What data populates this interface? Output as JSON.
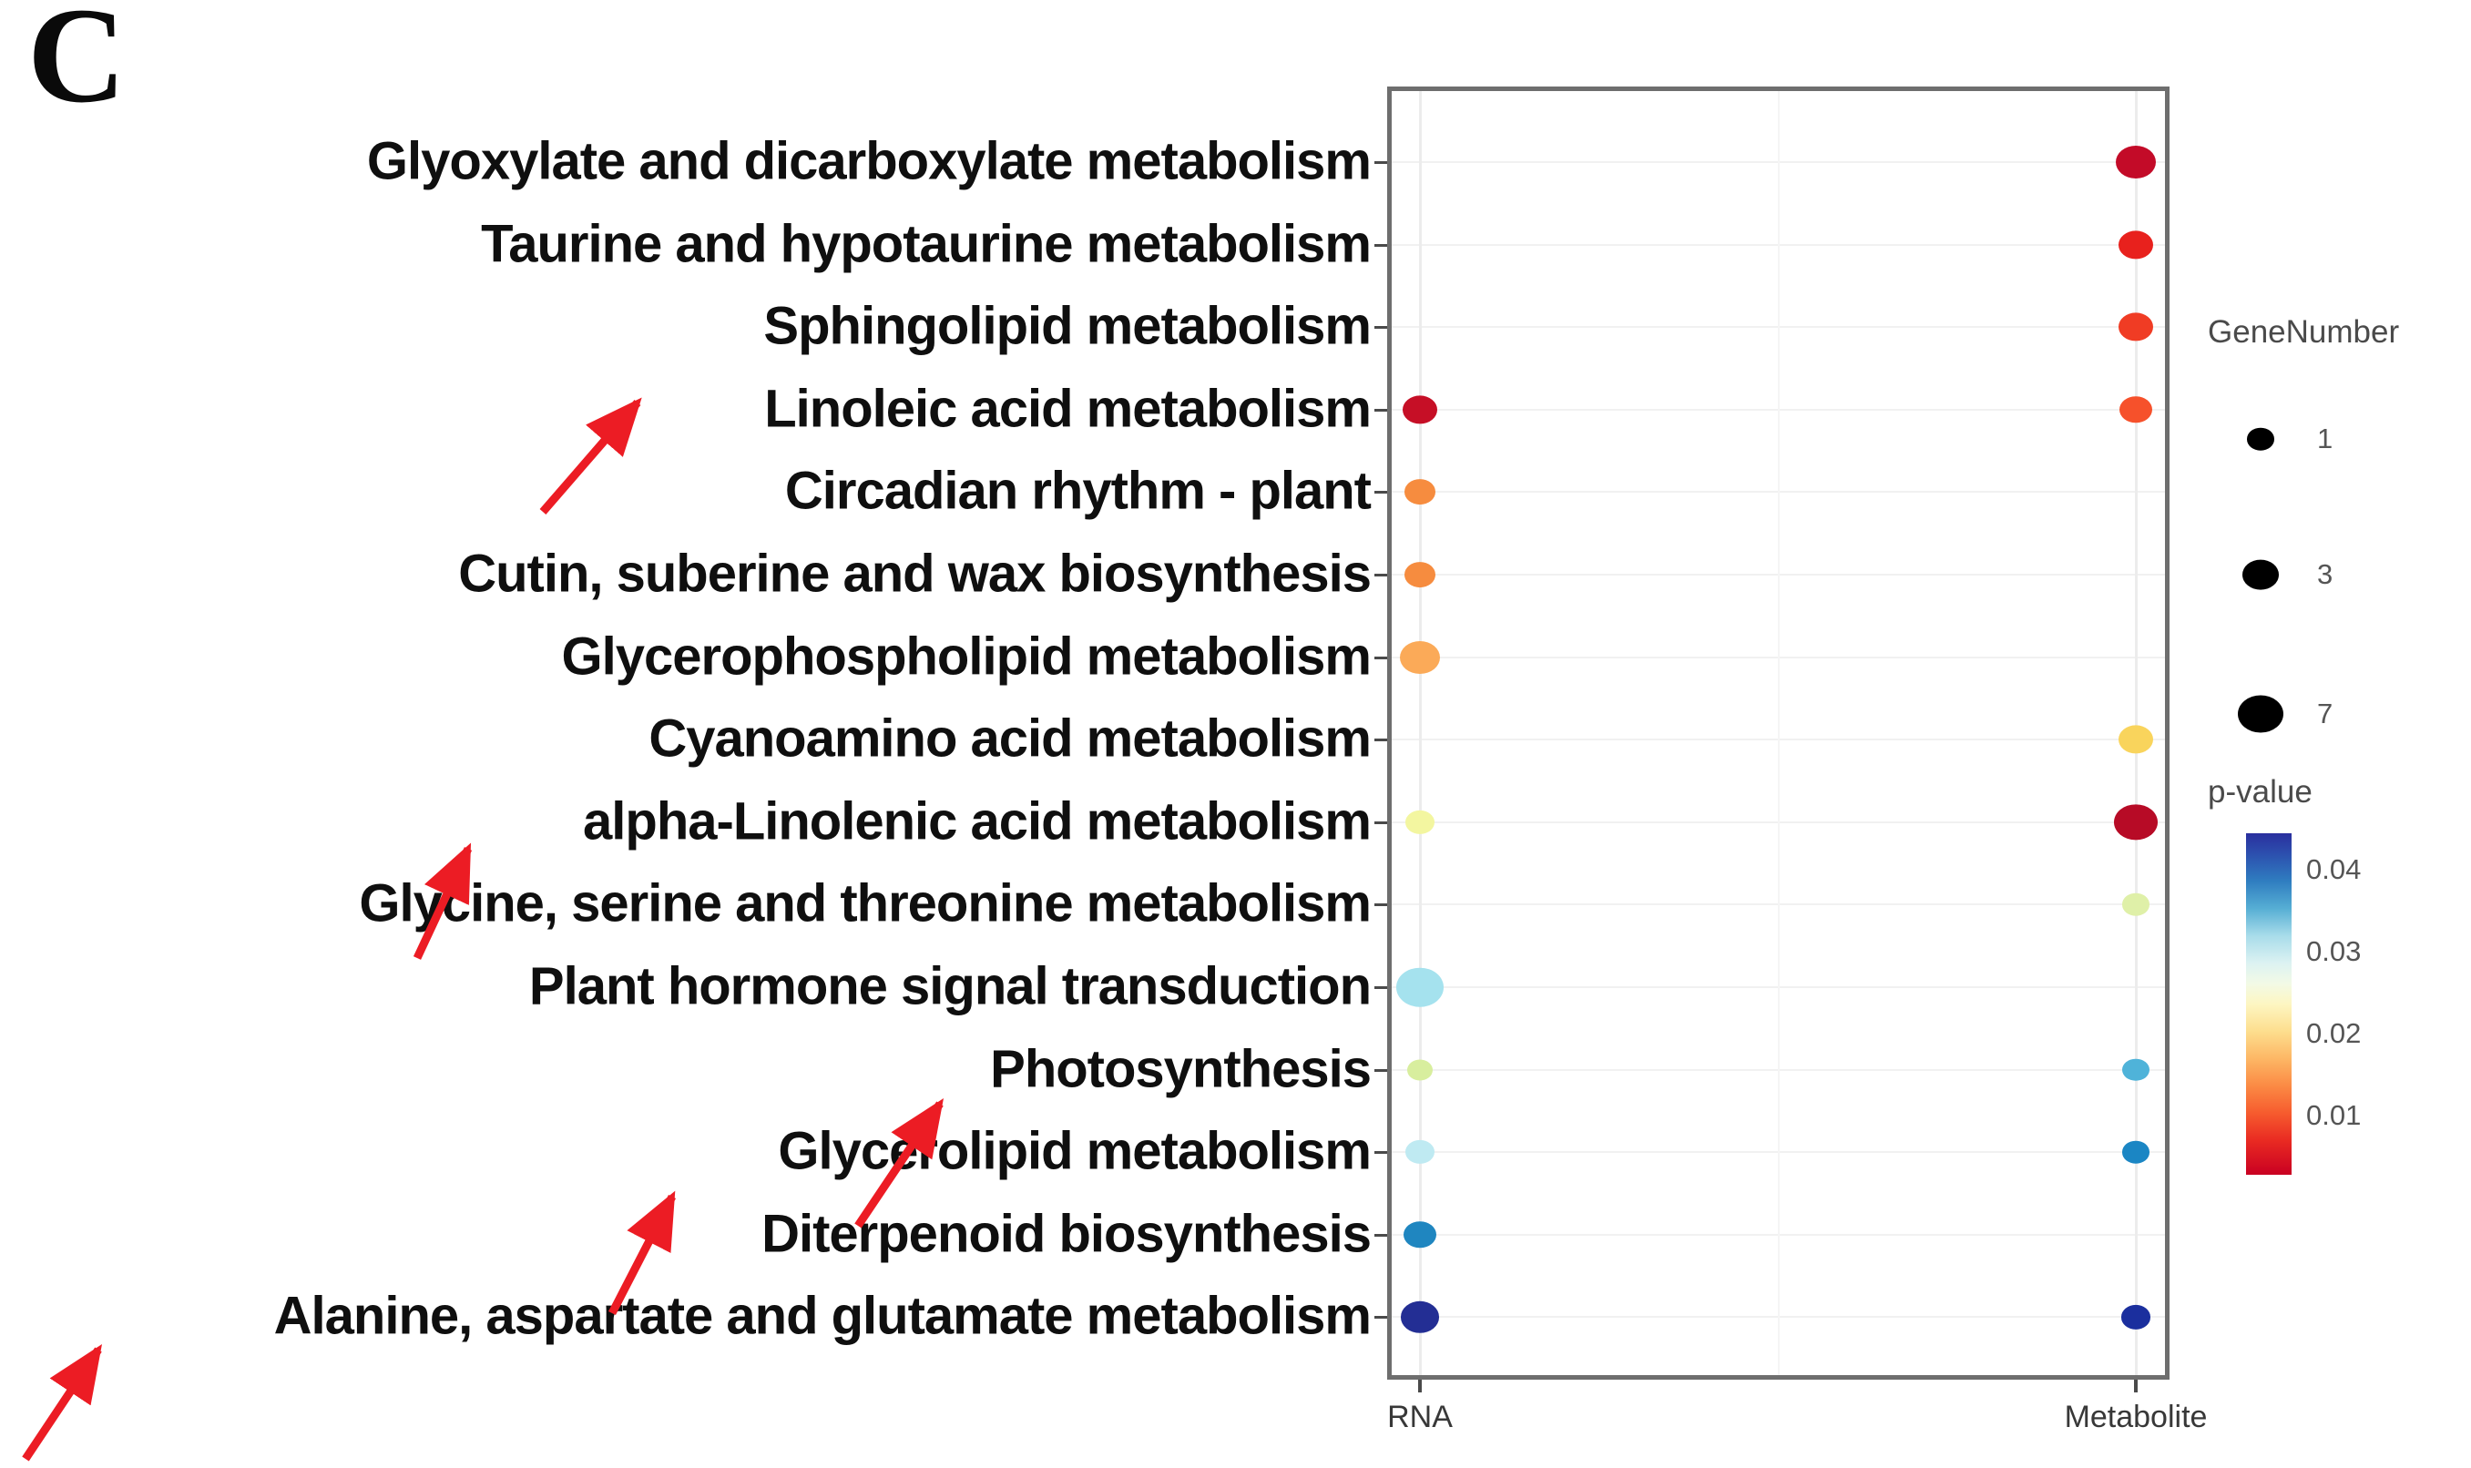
{
  "panel_label": "C",
  "legend_gene": {
    "title": "GeneNumber",
    "sizes": [
      {
        "value": "1",
        "diameter": 30
      },
      {
        "value": "3",
        "diameter": 40
      },
      {
        "value": "7",
        "diameter": 50
      }
    ]
  },
  "legend_pvalue": {
    "title": "p-value",
    "ticks": [
      "0.04",
      "0.03",
      "0.02",
      "0.01"
    ]
  },
  "annotation_arrow_color": "#ec1c24",
  "chart_data": {
    "type": "scatter",
    "subtype": "bubble-dot-plot",
    "title": "KEGG pathway enrichment (panel C)",
    "x_categories": [
      "RNA",
      "Metabolite"
    ],
    "y_categories": [
      "Glyoxylate and dicarboxylate metabolism",
      "Taurine and hypotaurine metabolism",
      "Sphingolipid metabolism",
      "Linoleic acid metabolism",
      "Circadian rhythm - plant",
      "Cutin, suberine and wax biosynthesis",
      "Glycerophospholipid metabolism",
      "Cyanoamino acid metabolism",
      "alpha-Linolenic acid metabolism",
      "Glycine, serine and threonine metabolism",
      "Plant hormone signal transduction",
      "Photosynthesis",
      "Glycerolipid metabolism",
      "Diterpenoid biosynthesis",
      "Alanine, aspartate and glutamate metabolism"
    ],
    "color_encoding": "p-value (blue high ~0.04, red low ~0.005)",
    "size_encoding": "GeneNumber (1, 3, 7)",
    "grid": true,
    "points": [
      {
        "pathway": "Linoleic acid metabolism",
        "sample": "RNA",
        "p_value_est": 0.004,
        "gene_number_est": 3,
        "color": "#c60f26",
        "diameter": 38
      },
      {
        "pathway": "Circadian rhythm - plant",
        "sample": "RNA",
        "p_value_est": 0.013,
        "gene_number_est": 2,
        "color": "#f68c3f",
        "diameter": 34
      },
      {
        "pathway": "Cutin, suberine and wax biosynthesis",
        "sample": "RNA",
        "p_value_est": 0.013,
        "gene_number_est": 2,
        "color": "#f68c3f",
        "diameter": 34
      },
      {
        "pathway": "Glycerophospholipid metabolism",
        "sample": "RNA",
        "p_value_est": 0.016,
        "gene_number_est": 5,
        "color": "#fbaa58",
        "diameter": 44
      },
      {
        "pathway": "alpha-Linolenic acid metabolism",
        "sample": "RNA",
        "p_value_est": 0.022,
        "gene_number_est": 2,
        "color": "#f3f6a0",
        "diameter": 32
      },
      {
        "pathway": "Plant hormone signal transduction",
        "sample": "RNA",
        "p_value_est": 0.03,
        "gene_number_est": 7,
        "color": "#a5e2ee",
        "diameter": 52
      },
      {
        "pathway": "Photosynthesis",
        "sample": "RNA",
        "p_value_est": 0.026,
        "gene_number_est": 1,
        "color": "#d8ee9e",
        "diameter": 28
      },
      {
        "pathway": "Glycerolipid metabolism",
        "sample": "RNA",
        "p_value_est": 0.029,
        "gene_number_est": 2,
        "color": "#bfeaf2",
        "diameter": 32
      },
      {
        "pathway": "Diterpenoid biosynthesis",
        "sample": "RNA",
        "p_value_est": 0.037,
        "gene_number_est": 2,
        "color": "#1f86c0",
        "diameter": 36
      },
      {
        "pathway": "Alanine, aspartate and glutamate metabolism",
        "sample": "RNA",
        "p_value_est": 0.044,
        "gene_number_est": 5,
        "color": "#232e94",
        "diameter": 42
      },
      {
        "pathway": "Glyoxylate and dicarboxylate metabolism",
        "sample": "Metabolite",
        "p_value_est": 0.004,
        "gene_number_est": 5,
        "color": "#c30b28",
        "diameter": 44
      },
      {
        "pathway": "Taurine and hypotaurine metabolism",
        "sample": "Metabolite",
        "p_value_est": 0.006,
        "gene_number_est": 3,
        "color": "#e8211d",
        "diameter": 38
      },
      {
        "pathway": "Sphingolipid metabolism",
        "sample": "Metabolite",
        "p_value_est": 0.008,
        "gene_number_est": 3,
        "color": "#f03c24",
        "diameter": 38
      },
      {
        "pathway": "Linoleic acid metabolism",
        "sample": "Metabolite",
        "p_value_est": 0.01,
        "gene_number_est": 3,
        "color": "#f6512b",
        "diameter": 36
      },
      {
        "pathway": "Cyanoamino acid metabolism",
        "sample": "Metabolite",
        "p_value_est": 0.019,
        "gene_number_est": 3,
        "color": "#f9d45c",
        "diameter": 38
      },
      {
        "pathway": "alpha-Linolenic acid metabolism",
        "sample": "Metabolite",
        "p_value_est": 0.002,
        "gene_number_est": 6,
        "color": "#b70b26",
        "diameter": 48
      },
      {
        "pathway": "Glycine, serine and threonine metabolism",
        "sample": "Metabolite",
        "p_value_est": 0.025,
        "gene_number_est": 2,
        "color": "#dff0a8",
        "diameter": 30
      },
      {
        "pathway": "Photosynthesis",
        "sample": "Metabolite",
        "p_value_est": 0.032,
        "gene_number_est": 1,
        "color": "#4fb3d9",
        "diameter": 30
      },
      {
        "pathway": "Glycerolipid metabolism",
        "sample": "Metabolite",
        "p_value_est": 0.035,
        "gene_number_est": 1,
        "color": "#1b86c4",
        "diameter": 30
      },
      {
        "pathway": "Alanine, aspartate and glutamate metabolism",
        "sample": "Metabolite",
        "p_value_est": 0.043,
        "gene_number_est": 2,
        "color": "#1b2f9e",
        "diameter": 32
      }
    ],
    "annotated_pathways": [
      "Linoleic acid metabolism",
      "alpha-Linolenic acid metabolism",
      "Photosynthesis",
      "Glycerolipid metabolism",
      "Alanine, aspartate and glutamate metabolism"
    ]
  }
}
